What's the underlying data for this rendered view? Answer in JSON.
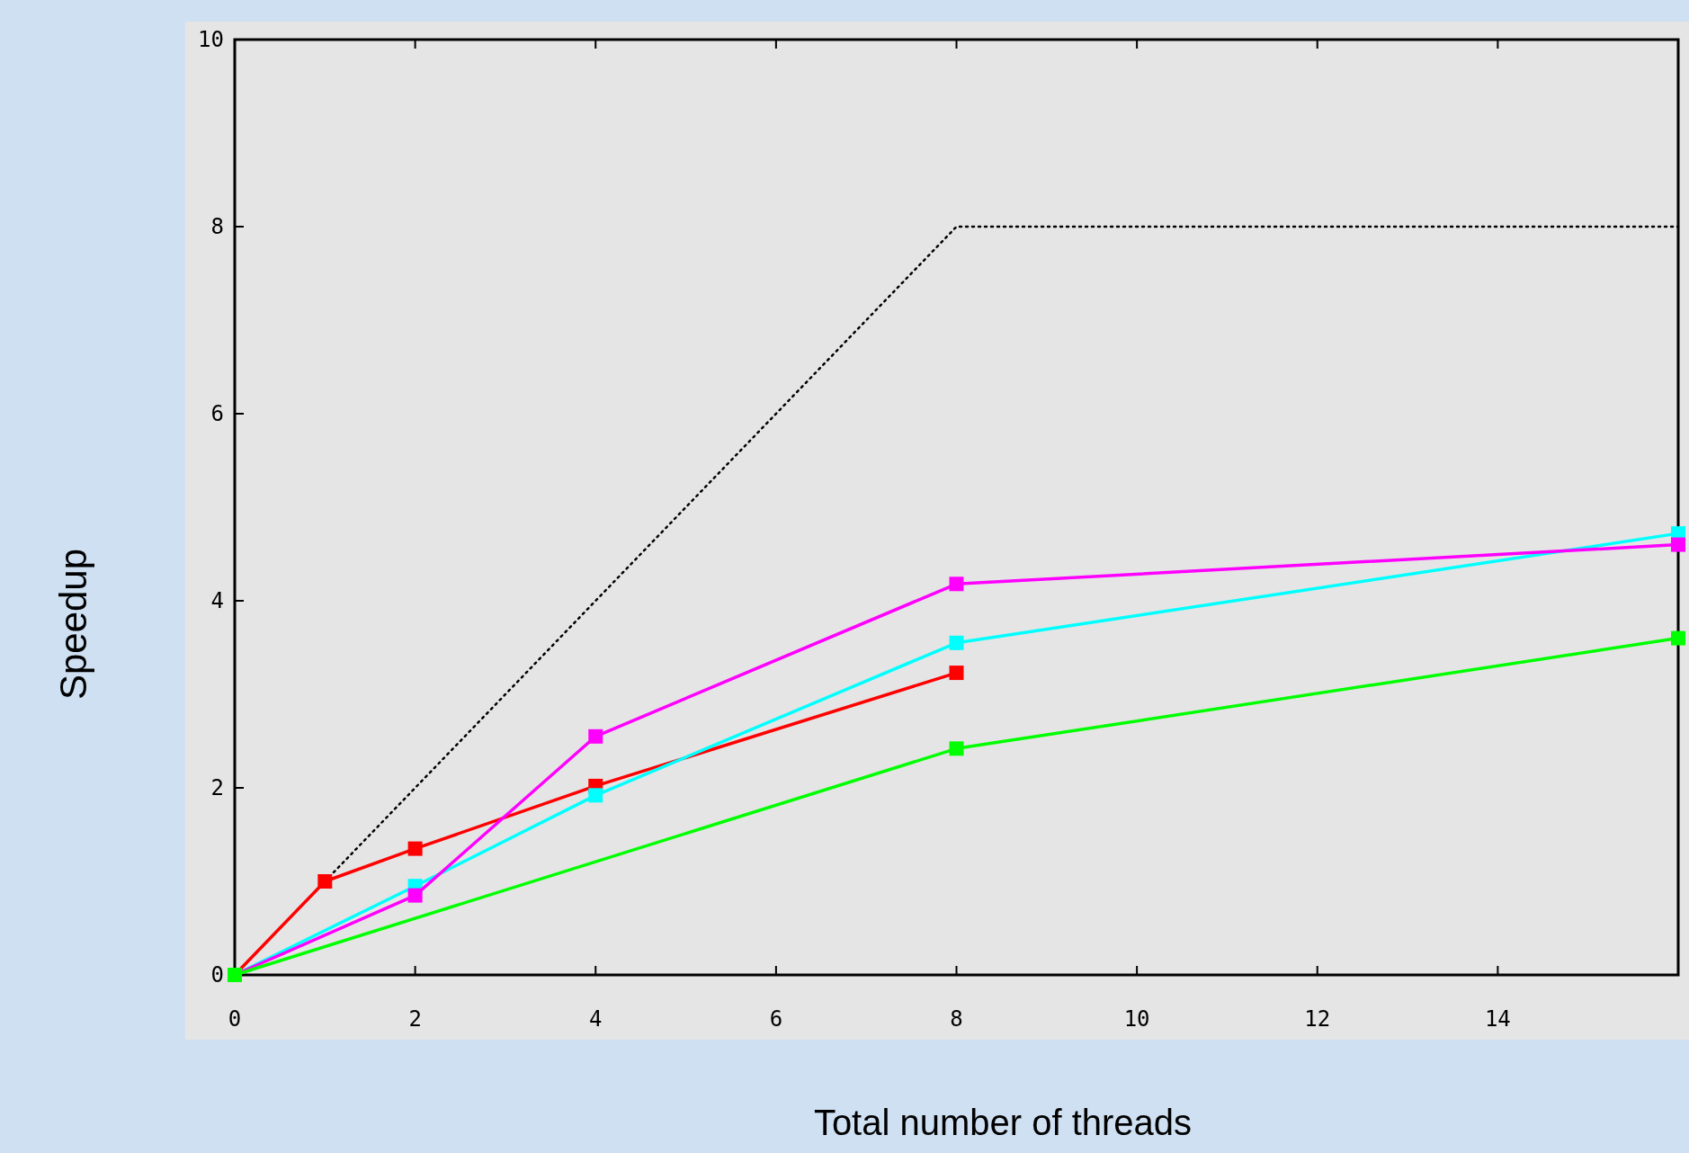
{
  "chart_data": {
    "type": "line",
    "xlabel": "Total number of threads",
    "ylabel": "Speedup",
    "xlim": [
      0,
      16
    ],
    "ylim": [
      0,
      10
    ],
    "xticks": [
      0,
      2,
      4,
      6,
      8,
      10,
      12,
      14
    ],
    "yticks": [
      0,
      2,
      4,
      6,
      8,
      10
    ],
    "grid": false,
    "series": [
      {
        "color": "#000000",
        "x": [
          1,
          8,
          16
        ],
        "values": [
          1,
          8,
          8
        ],
        "marker": "none",
        "line_style": "dotted"
      },
      {
        "color": "#ff0000",
        "x": [
          0,
          1,
          2,
          4,
          8
        ],
        "values": [
          0,
          1,
          1.35,
          2.02,
          3.23
        ],
        "marker": "square",
        "line_style": "solid"
      },
      {
        "color": "#00ffff",
        "x": [
          0,
          2,
          4,
          8,
          16
        ],
        "values": [
          0,
          0.95,
          1.92,
          3.55,
          4.72
        ],
        "marker": "square",
        "line_style": "solid"
      },
      {
        "color": "#ff00ff",
        "x": [
          0,
          2,
          4,
          8,
          16
        ],
        "values": [
          0,
          0.85,
          2.55,
          4.18,
          4.6
        ],
        "marker": "square",
        "line_style": "solid"
      },
      {
        "color": "#00ff00",
        "x": [
          0,
          8,
          16
        ],
        "values": [
          0,
          2.42,
          3.6
        ],
        "marker": "square",
        "line_style": "solid"
      }
    ]
  }
}
